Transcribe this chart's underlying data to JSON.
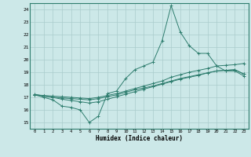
{
  "title": "",
  "xlabel": "Humidex (Indice chaleur)",
  "bg_color": "#cce8e8",
  "line_color": "#2e7d6e",
  "grid_color": "#aacccc",
  "xlim": [
    -0.5,
    23.5
  ],
  "ylim": [
    14.5,
    24.5
  ],
  "yticks": [
    15,
    16,
    17,
    18,
    19,
    20,
    21,
    22,
    23,
    24
  ],
  "xticks": [
    0,
    1,
    2,
    3,
    4,
    5,
    6,
    7,
    8,
    9,
    10,
    11,
    12,
    13,
    14,
    15,
    16,
    17,
    18,
    19,
    20,
    21,
    22,
    23
  ],
  "series1": {
    "x": [
      0,
      1,
      2,
      3,
      4,
      5,
      6,
      7,
      8,
      9,
      10,
      11,
      12,
      13,
      14,
      15,
      16,
      17,
      18,
      19,
      20,
      21,
      22,
      23
    ],
    "y": [
      17.2,
      17.0,
      16.8,
      16.3,
      16.2,
      16.0,
      15.0,
      15.5,
      17.3,
      17.5,
      18.5,
      19.2,
      19.5,
      19.8,
      21.5,
      24.3,
      22.2,
      21.1,
      20.5,
      20.5,
      19.5,
      19.1,
      19.1,
      18.7
    ]
  },
  "series2": {
    "x": [
      0,
      1,
      2,
      3,
      4,
      5,
      6,
      7,
      8,
      9,
      10,
      11,
      12,
      13,
      14,
      15,
      16,
      17,
      18,
      19,
      20,
      21,
      22,
      23
    ],
    "y": [
      17.2,
      17.15,
      17.1,
      17.05,
      17.0,
      16.95,
      16.9,
      17.0,
      17.15,
      17.3,
      17.5,
      17.7,
      17.9,
      18.1,
      18.3,
      18.6,
      18.8,
      19.0,
      19.15,
      19.3,
      19.5,
      19.55,
      19.6,
      19.7
    ]
  },
  "series3": {
    "x": [
      0,
      1,
      2,
      3,
      4,
      5,
      6,
      7,
      8,
      9,
      10,
      11,
      12,
      13,
      14,
      15,
      16,
      17,
      18,
      19,
      20,
      21,
      22,
      23
    ],
    "y": [
      17.2,
      17.1,
      17.0,
      16.95,
      16.9,
      16.85,
      16.8,
      16.9,
      17.05,
      17.2,
      17.4,
      17.6,
      17.75,
      17.9,
      18.1,
      18.3,
      18.5,
      18.65,
      18.8,
      18.95,
      19.1,
      19.15,
      19.2,
      18.85
    ]
  },
  "series4": {
    "x": [
      0,
      1,
      2,
      3,
      4,
      5,
      6,
      7,
      8,
      9,
      10,
      11,
      12,
      13,
      14,
      15,
      16,
      17,
      18,
      19,
      20,
      21,
      22,
      23
    ],
    "y": [
      17.25,
      17.1,
      17.0,
      16.85,
      16.75,
      16.65,
      16.55,
      16.65,
      16.85,
      17.05,
      17.25,
      17.45,
      17.65,
      17.85,
      18.05,
      18.25,
      18.45,
      18.6,
      18.75,
      18.95,
      19.1,
      19.15,
      19.2,
      18.85
    ]
  }
}
